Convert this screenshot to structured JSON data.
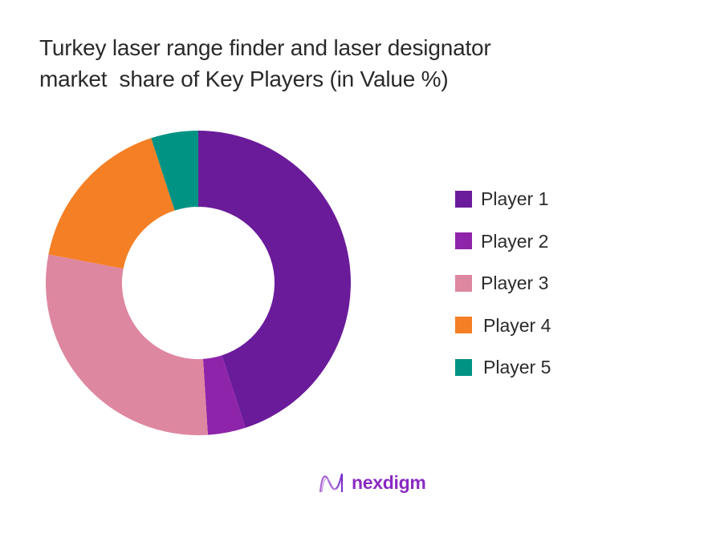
{
  "title": {
    "line1": "Turkey laser range finder and laser designator",
    "line2": "market  share of Key Players (in Value %)"
  },
  "chart_data": {
    "type": "pie",
    "subtype": "donut",
    "title": "Turkey laser range finder and laser designator market share of Key Players (in Value %)",
    "categories": [
      "Player 1",
      "Player 2",
      "Player 3",
      "Player 4",
      "Player 5"
    ],
    "values": [
      45,
      4,
      29,
      17,
      5
    ],
    "colors": [
      "#6a1b9a",
      "#8e24aa",
      "#de87a0",
      "#f57f25",
      "#009384"
    ],
    "start_angle_deg": 0,
    "direction": "clockwise",
    "data_labels": false,
    "legend_position": "right"
  },
  "legend": {
    "items": [
      {
        "label": "Player 1",
        "color": "#6a1b9a"
      },
      {
        "label": "Player 2",
        "color": "#8e24aa"
      },
      {
        "label": "Player 3",
        "color": "#de87a0"
      },
      {
        "label": "Player 4",
        "color": "#f57f25"
      },
      {
        "label": "Player 5",
        "color": "#009384"
      }
    ]
  },
  "logo": {
    "text": "nexdigm",
    "icon": "nexdigm-wave-logo-icon",
    "color": "#8a2bc2"
  }
}
